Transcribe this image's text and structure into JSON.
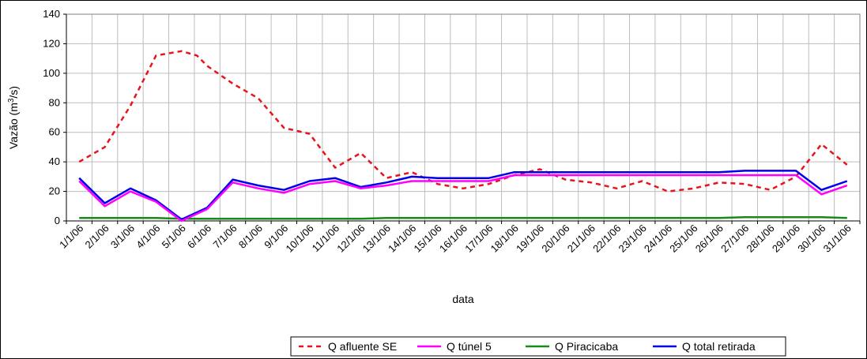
{
  "chart_data": {
    "type": "line",
    "title": "",
    "xlabel": "data",
    "ylabel": "Vazão (m³/s)",
    "ylabel_base": "Vazão (m",
    "ylabel_sup": "3",
    "ylabel_end": "/s)",
    "ylim": [
      0,
      140
    ],
    "yticks": [
      0,
      20,
      40,
      60,
      80,
      100,
      120,
      140
    ],
    "grid": true,
    "legend_position": "bottom",
    "categories": [
      "1/1/06",
      "2/1/06",
      "3/1/06",
      "4/1/06",
      "5/1/06",
      "6/1/06",
      "7/1/06",
      "8/1/06",
      "9/1/06",
      "10/1/06",
      "11/1/06",
      "12/1/06",
      "13/1/06",
      "14/1/06",
      "15/1/06",
      "16/1/06",
      "17/1/06",
      "18/1/06",
      "19/1/06",
      "20/1/06",
      "21/1/06",
      "22/1/06",
      "23/1/06",
      "24/1/06",
      "25/1/06",
      "26/1/06",
      "27/1/06",
      "28/1/06",
      "29/1/06",
      "30/1/06",
      "31/1/06"
    ],
    "series": [
      {
        "name": "Q afluente SE",
        "color": "#e8141b",
        "dash": "dashed",
        "x": [
          1,
          2,
          3,
          4,
          5,
          5.6,
          6,
          7,
          8,
          9,
          10,
          11,
          12,
          13,
          14,
          15,
          16,
          17,
          18,
          19,
          20,
          21,
          22,
          23,
          24,
          25,
          26,
          27,
          28,
          29,
          30,
          31
        ],
        "values": [
          40,
          50,
          78,
          112,
          115,
          112,
          105,
          93,
          83,
          63,
          59,
          36,
          46,
          29,
          33,
          25,
          22,
          25,
          31,
          35,
          28,
          26,
          22,
          27,
          20,
          22,
          26,
          25,
          21,
          30,
          52,
          38
        ]
      },
      {
        "name": "Q túnel 5",
        "color": "#ff00ff",
        "dash": "solid",
        "x": [
          1,
          2,
          3,
          4,
          5,
          6,
          7,
          8,
          9,
          10,
          11,
          12,
          13,
          14,
          15,
          16,
          17,
          18,
          19,
          20,
          21,
          22,
          23,
          24,
          25,
          26,
          27,
          28,
          29,
          30,
          31
        ],
        "values": [
          27,
          10,
          20,
          13,
          0,
          8,
          26,
          22,
          19,
          25,
          27,
          22,
          24,
          27,
          27,
          27,
          27,
          31,
          31,
          31,
          31,
          31,
          31,
          31,
          31,
          31,
          31,
          31,
          31,
          18,
          24
        ]
      },
      {
        "name": "Q Piracicaba",
        "color": "#1a8a1a",
        "dash": "solid",
        "x": [
          1,
          2,
          3,
          4,
          5,
          6,
          7,
          8,
          9,
          10,
          11,
          12,
          13,
          14,
          15,
          16,
          17,
          18,
          19,
          20,
          21,
          22,
          23,
          24,
          25,
          26,
          27,
          28,
          29,
          30,
          31
        ],
        "values": [
          2,
          2,
          2,
          2,
          1.5,
          1.5,
          1.5,
          1.5,
          1.5,
          1.5,
          1.5,
          1.5,
          2,
          2,
          2,
          2,
          2,
          2,
          2,
          2,
          2,
          2,
          2,
          2,
          2,
          2,
          2.5,
          2.5,
          2.5,
          2.5,
          2
        ]
      },
      {
        "name": "Q total retirada",
        "color": "#0000ee",
        "dash": "solid",
        "x": [
          1,
          2,
          3,
          4,
          5,
          6,
          7,
          8,
          9,
          10,
          11,
          12,
          13,
          14,
          15,
          16,
          17,
          18,
          19,
          20,
          21,
          22,
          23,
          24,
          25,
          26,
          27,
          28,
          29,
          30,
          31
        ],
        "values": [
          29,
          12,
          22,
          14,
          1,
          9,
          28,
          24,
          21,
          27,
          29,
          23,
          26,
          30,
          29,
          29,
          29,
          33,
          33,
          33,
          33,
          33,
          33,
          33,
          33,
          33,
          34,
          34,
          34,
          21,
          27
        ]
      }
    ]
  }
}
